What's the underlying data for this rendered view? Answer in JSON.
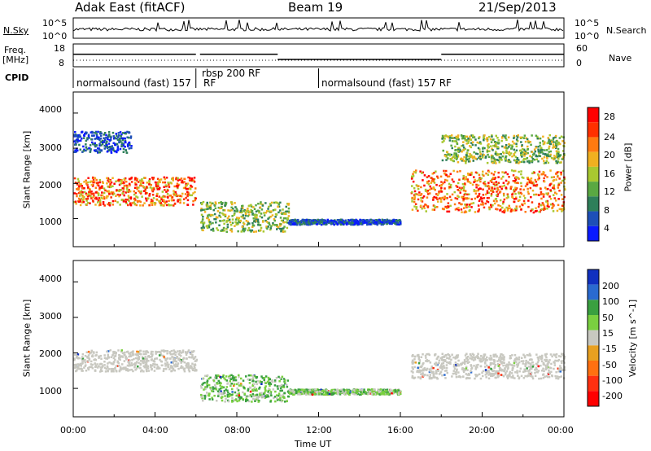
{
  "header": {
    "radar": "Adak East (fitACF)",
    "beam": "Beam 19",
    "date": "21/Sep/2013"
  },
  "top_panels": {
    "nsky_label": "N.Sky",
    "nsky_ticks": [
      "10^5",
      "10^0"
    ],
    "nsearch_label": "N.Search",
    "nsearch_ticks": [
      "10^5",
      "10^0"
    ],
    "freq_label": "Freq.",
    "freq_unit": "[MHz]",
    "freq_ticks": [
      "18",
      "8"
    ],
    "nave_label": "Nave",
    "nave_ticks": [
      "60",
      "0"
    ],
    "cpid_label": "CPID",
    "cpid_segments": [
      {
        "label": "normalsound (fast) 157",
        "start": 0,
        "end": 6.0
      },
      {
        "label": "rbsp 200 RF",
        "start": 6.0,
        "end": 12.0
      },
      {
        "label": "normalsound (fast) 157 RF",
        "start": 12.0,
        "end": 24.0
      }
    ],
    "freq_steps": [
      {
        "start": 0,
        "end": 6.0,
        "value": 13.5
      },
      {
        "start": 6.2,
        "end": 10.0,
        "value": 13.5
      },
      {
        "start": 10.0,
        "end": 18.0,
        "value": 11.2
      },
      {
        "start": 18.0,
        "end": 24.0,
        "value": 13.5
      }
    ]
  },
  "chart_data": [
    {
      "type": "heatmap",
      "title": "",
      "ylabel": "Slant Range [km]",
      "xlim": [
        0,
        24
      ],
      "ylim": [
        200,
        4600
      ],
      "yticks": [
        "1000",
        "2000",
        "3000",
        "4000"
      ],
      "colorbar": {
        "label": "Power [dB]",
        "ticks": [
          "4",
          "8",
          "12",
          "16",
          "20",
          "24",
          "28"
        ],
        "colors": [
          "#0a1aff",
          "#1e4fb8",
          "#2e7f5a",
          "#5aa842",
          "#a8c830",
          "#f0b020",
          "#ff7a10",
          "#ff3000",
          "#ff0000"
        ]
      },
      "regions": [
        {
          "t0": 0.0,
          "t1": 6.0,
          "r0": 1400,
          "r1": 2200,
          "level": "high"
        },
        {
          "t0": 0.0,
          "t1": 2.8,
          "r0": 2900,
          "r1": 3500,
          "level": "low"
        },
        {
          "t0": 6.2,
          "t1": 10.5,
          "r0": 650,
          "r1": 1500,
          "level": "mid"
        },
        {
          "t0": 10.5,
          "t1": 16.0,
          "r0": 850,
          "r1": 1000,
          "level": "low"
        },
        {
          "t0": 16.5,
          "t1": 24.0,
          "r0": 1200,
          "r1": 2400,
          "level": "high"
        },
        {
          "t0": 18.0,
          "t1": 24.0,
          "r0": 2600,
          "r1": 3400,
          "level": "mid"
        }
      ]
    },
    {
      "type": "heatmap",
      "title": "",
      "ylabel": "Slant Range [km]",
      "xlabel": "Time UT",
      "xlim": [
        0,
        24
      ],
      "ylim": [
        200,
        4600
      ],
      "xticks": [
        "00:00",
        "04:00",
        "08:00",
        "12:00",
        "16:00",
        "20:00",
        "00:00"
      ],
      "yticks": [
        "1000",
        "2000",
        "3000",
        "4000"
      ],
      "colorbar": {
        "label": "Velocity [m s^-1]",
        "ticks": [
          "200",
          "100",
          "50",
          "15",
          "-15",
          "-50",
          "-100",
          "-200"
        ],
        "colors": [
          "#1030c0",
          "#2a6ad0",
          "#3aa040",
          "#7ad040",
          "#c8c8c0",
          "#e8a020",
          "#ff7010",
          "#ff3010",
          "#ff0000"
        ]
      },
      "regions": [
        {
          "t0": 0.0,
          "t1": 6.0,
          "r0": 1500,
          "r1": 2100,
          "level": "ground"
        },
        {
          "t0": 6.2,
          "t1": 10.5,
          "r0": 650,
          "r1": 1400,
          "level": "positive"
        },
        {
          "t0": 10.5,
          "t1": 16.0,
          "r0": 850,
          "r1": 1000,
          "level": "positive"
        },
        {
          "t0": 16.5,
          "t1": 24.0,
          "r0": 1300,
          "r1": 2000,
          "level": "ground"
        }
      ]
    }
  ]
}
